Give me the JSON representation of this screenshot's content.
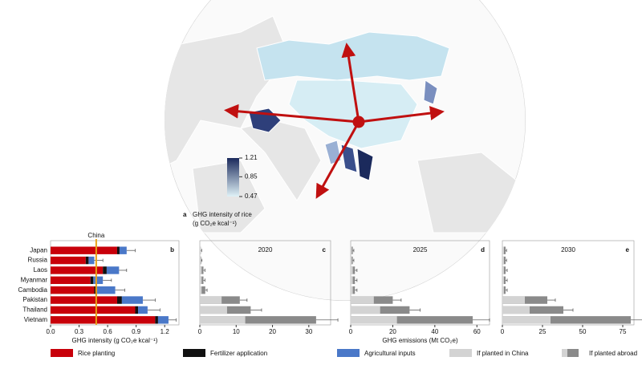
{
  "chart_data": [
    {
      "type": "map",
      "panel": "a",
      "title": "GHG intensity of rice",
      "subtitle": "(g CO₂e kcal⁻¹)",
      "colorbar": {
        "lim": [
          0.47,
          1.21
        ],
        "ticks": [
          0.47,
          0.85,
          1.21
        ],
        "colors": [
          "#dff1f7",
          "#1b2a5c"
        ]
      }
    },
    {
      "type": "stacked-barh",
      "panel": "b",
      "xlabel": "GHG intensity (g CO₂e kcal⁻¹)",
      "categories": [
        "Japan",
        "Russia",
        "Laos",
        "Myanmar",
        "Cambodia",
        "Pakistan",
        "Thailand",
        "Vietnam"
      ],
      "series": [
        {
          "name": "Rice planting",
          "color": "#c8000a",
          "values": [
            0.7,
            0.37,
            0.55,
            0.42,
            0.46,
            0.7,
            0.89,
            1.1
          ]
        },
        {
          "name": "Fertilizer application",
          "color": "#111111",
          "values": [
            0.025,
            0.03,
            0.04,
            0.03,
            0.03,
            0.05,
            0.03,
            0.03
          ]
        },
        {
          "name": "Agricultural inputs",
          "color": "#4a78c8",
          "values": [
            0.075,
            0.06,
            0.13,
            0.1,
            0.19,
            0.22,
            0.1,
            0.11
          ]
        }
      ],
      "errors": [
        0.09,
        0.09,
        0.08,
        0.09,
        0.1,
        0.13,
        0.13,
        0.08
      ],
      "reference": {
        "label": "China",
        "value": 0.48,
        "color": "#e8a317"
      },
      "xlim": [
        0,
        1.35
      ],
      "xticks": [
        {
          "value": 0,
          "label": "0.0"
        },
        0.3,
        0.6,
        0.9,
        1.2
      ]
    },
    {
      "type": "overlay-barh",
      "panel": "c",
      "title": "2020",
      "series": [
        {
          "name": "If planted abroad",
          "color": "#8a8a8a",
          "values": [
            0.3,
            0.4,
            1,
            1,
            1.5,
            11,
            14,
            32
          ]
        },
        {
          "name": "If planted in China",
          "color": "#d3d3d3",
          "values": [
            0.3,
            0.3,
            0.5,
            0.5,
            0.5,
            6,
            7.5,
            12.5
          ]
        }
      ],
      "errors": [
        0.2,
        0.2,
        0.4,
        0.4,
        0.5,
        2,
        3,
        6
      ],
      "xlim": [
        0,
        36
      ],
      "xticks": [
        0,
        10,
        20,
        30
      ]
    },
    {
      "type": "overlay-barh",
      "panel": "d",
      "title": "2025",
      "xlabel": "GHG emissions (Mt CO₂e)",
      "series": [
        {
          "name": "If planted abroad",
          "color": "#8a8a8a",
          "values": [
            1,
            1,
            2,
            2,
            2,
            20,
            28,
            58
          ]
        },
        {
          "name": "If planted in China",
          "color": "#d3d3d3",
          "values": [
            0.5,
            0.5,
            1,
            1,
            1,
            11,
            14,
            22
          ]
        }
      ],
      "errors": [
        0.5,
        0.5,
        1,
        1,
        1,
        4,
        5,
        8
      ],
      "xlim": [
        0,
        66
      ],
      "xticks": [
        0,
        20,
        40,
        60
      ]
    },
    {
      "type": "overlay-barh",
      "panel": "e",
      "title": "2030",
      "series": [
        {
          "name": "If planted abroad",
          "color": "#8a8a8a",
          "values": [
            2,
            2,
            2,
            2,
            2,
            28,
            38,
            80
          ]
        },
        {
          "name": "If planted in China",
          "color": "#d3d3d3",
          "values": [
            1,
            1,
            1,
            1,
            1,
            14,
            17,
            30
          ]
        }
      ],
      "errors": [
        0.6,
        0.6,
        1,
        1,
        1,
        5,
        6,
        9
      ],
      "xlim": [
        0,
        82
      ],
      "xticks": [
        0,
        25,
        50,
        75
      ]
    }
  ]
}
